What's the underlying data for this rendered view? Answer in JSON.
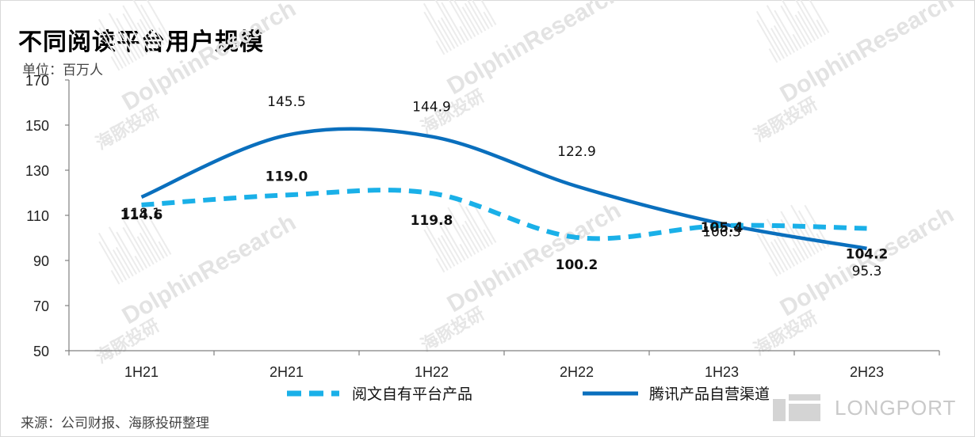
{
  "title": "不同阅读平台用户规模",
  "unit": "单位：百万人",
  "source": "来源：公司财报、海豚投研整理",
  "watermark": {
    "text_cn": "海豚投研",
    "text_en": "DolphinResearch",
    "logo_text": "LONGPORT"
  },
  "colors": {
    "series_1": "#1ab0e8",
    "series_2": "#0a6fbd",
    "axis": "#808080"
  },
  "chart_data": {
    "type": "line",
    "categories": [
      "1H21",
      "2H21",
      "1H22",
      "2H22",
      "1H23",
      "2H23"
    ],
    "ylim": [
      50,
      170
    ],
    "yticks": [
      "170",
      "150",
      "130",
      "110",
      "90",
      "70",
      "50"
    ],
    "grid": false,
    "legend_position": "bottom",
    "series": [
      {
        "name": "阅文自有平台产品",
        "style": "dashed",
        "smooth": true,
        "values": [
          114.6,
          119.0,
          119.8,
          100.2,
          105.4,
          104.2
        ]
      },
      {
        "name": "腾讯产品自营渠道",
        "style": "solid",
        "smooth": true,
        "values": [
          118.1,
          145.5,
          144.9,
          122.9,
          106.3,
          95.3
        ]
      }
    ],
    "data_labels": [
      [
        "114.6",
        "119.0",
        "119.8",
        "100.2",
        "105.4",
        "104.2"
      ],
      [
        "118.1",
        "145.5",
        "144.9",
        "122.9",
        "106.3",
        "95.3"
      ]
    ]
  }
}
